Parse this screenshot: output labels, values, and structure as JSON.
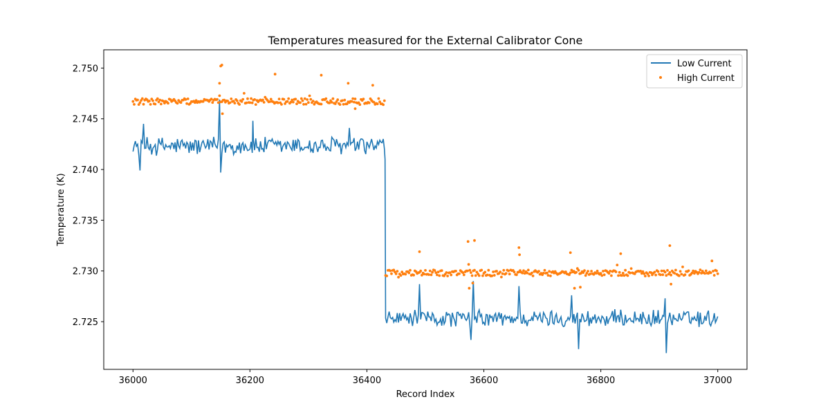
{
  "chart_data": {
    "type": "line+scatter",
    "title": "Temperatures measured for the External Calibrator Cone",
    "xlabel": "Record Index",
    "ylabel": "Temperature (K)",
    "xlim": [
      35950,
      37050
    ],
    "ylim": [
      2.7203,
      2.7518
    ],
    "xticks": [
      36000,
      36200,
      36400,
      36600,
      36800,
      37000
    ],
    "xtick_labels": [
      "36000",
      "36200",
      "36400",
      "36600",
      "36800",
      "37000"
    ],
    "yticks": [
      2.725,
      2.73,
      2.735,
      2.74,
      2.745,
      2.75
    ],
    "ytick_labels": [
      "2.725",
      "2.730",
      "2.735",
      "2.740",
      "2.745",
      "2.750"
    ],
    "grid": false,
    "legend_position": "top-right",
    "series": [
      {
        "name": "Low Current",
        "kind": "line",
        "color": "#1f77b4",
        "x_start": 36000,
        "x_end": 37000,
        "segments": [
          {
            "x_from": 36000,
            "x_to": 36430,
            "level": 2.7423,
            "amplitude": 0.0009
          },
          {
            "x_from": 36432,
            "x_to": 37000,
            "level": 2.7253,
            "amplitude": 0.0008
          }
        ],
        "spikes": [
          {
            "x": 36148,
            "y": 2.7469
          },
          {
            "x": 36150,
            "y": 2.7397
          },
          {
            "x": 36012,
            "y": 2.7399
          },
          {
            "x": 36018,
            "y": 2.7445
          },
          {
            "x": 36205,
            "y": 2.7448
          },
          {
            "x": 36370,
            "y": 2.7441
          },
          {
            "x": 36430,
            "y": 2.742
          },
          {
            "x": 36431,
            "y": 2.741
          },
          {
            "x": 36490,
            "y": 2.7287
          },
          {
            "x": 36582,
            "y": 2.729
          },
          {
            "x": 36578,
            "y": 2.7232
          },
          {
            "x": 36660,
            "y": 2.7285
          },
          {
            "x": 36750,
            "y": 2.7276
          },
          {
            "x": 36762,
            "y": 2.7223
          },
          {
            "x": 36910,
            "y": 2.7273
          },
          {
            "x": 36912,
            "y": 2.7219
          }
        ]
      },
      {
        "name": "High Current",
        "kind": "scatter",
        "color": "#ff7f0e",
        "x_start": 36000,
        "x_end": 37000,
        "segments": [
          {
            "x_from": 36000,
            "x_to": 36430,
            "level": 2.7467,
            "amplitude": 0.0003
          },
          {
            "x_from": 36432,
            "x_to": 37000,
            "level": 2.7298,
            "amplitude": 0.0003
          }
        ],
        "outliers": [
          {
            "x": 36150,
            "y": 2.7502
          },
          {
            "x": 36152,
            "y": 2.7503
          },
          {
            "x": 36148,
            "y": 2.7485
          },
          {
            "x": 36153,
            "y": 2.7455
          },
          {
            "x": 36243,
            "y": 2.7494
          },
          {
            "x": 36322,
            "y": 2.7493
          },
          {
            "x": 36368,
            "y": 2.7485
          },
          {
            "x": 36380,
            "y": 2.746
          },
          {
            "x": 36410,
            "y": 2.7483
          },
          {
            "x": 36490,
            "y": 2.7319
          },
          {
            "x": 36573,
            "y": 2.7329
          },
          {
            "x": 36584,
            "y": 2.733
          },
          {
            "x": 36575,
            "y": 2.7283
          },
          {
            "x": 36581,
            "y": 2.7288
          },
          {
            "x": 36660,
            "y": 2.7323
          },
          {
            "x": 36661,
            "y": 2.7316
          },
          {
            "x": 36748,
            "y": 2.7318
          },
          {
            "x": 36755,
            "y": 2.7283
          },
          {
            "x": 36765,
            "y": 2.7284
          },
          {
            "x": 36834,
            "y": 2.7317
          },
          {
            "x": 36918,
            "y": 2.7325
          },
          {
            "x": 36920,
            "y": 2.7287
          }
        ]
      }
    ]
  }
}
